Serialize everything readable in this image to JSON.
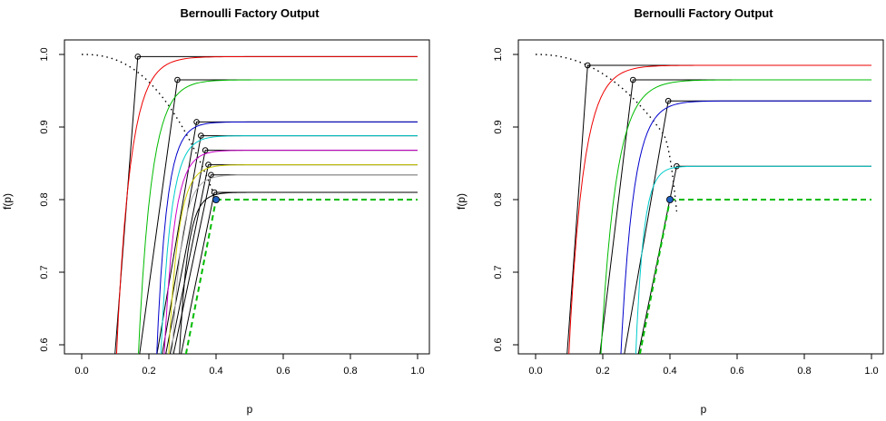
{
  "chart_data": [
    {
      "type": "line",
      "title": "Bernoulli Factory Output",
      "xlabel": "p",
      "ylabel": "f(p)",
      "xlim": [
        0.0,
        1.0
      ],
      "ylim": [
        0.59,
        1.02
      ],
      "xticks": [
        "0.0",
        "0.2",
        "0.4",
        "0.6",
        "0.8",
        "1.0"
      ],
      "yticks": [
        "0.6",
        "0.7",
        "0.8",
        "0.9",
        "1.0"
      ],
      "grid": false,
      "legend": "none",
      "target_function": {
        "style": "dotted",
        "color": "#000000",
        "x_range": [
          0.0,
          0.4
        ]
      },
      "target_point": {
        "x": 0.4,
        "y": 0.8,
        "color": "#1f5fbf"
      },
      "target_line": {
        "y": 0.8,
        "from_x": 0.4,
        "to_x": 1.0,
        "style": "dashed",
        "color": "#00bb00"
      },
      "series": [
        {
          "color": "#000000",
          "steep": true,
          "root": 0.095,
          "knot_x": 0.167,
          "plateau": 0.997
        },
        {
          "color": "#ee0000",
          "steep": false,
          "root": 0.1,
          "knot_x": 0.285,
          "plateau": 0.997
        },
        {
          "color": "#000000",
          "steep": true,
          "root": 0.165,
          "knot_x": 0.285,
          "plateau": 0.965
        },
        {
          "color": "#00bb00",
          "steep": false,
          "root": 0.165,
          "knot_x": 0.342,
          "plateau": 0.965
        },
        {
          "color": "#000000",
          "steep": true,
          "root": 0.215,
          "knot_x": 0.342,
          "plateau": 0.907
        },
        {
          "color": "#0000cc",
          "steep": false,
          "root": 0.22,
          "knot_x": 0.355,
          "plateau": 0.907
        },
        {
          "color": "#000000",
          "steep": true,
          "root": 0.23,
          "knot_x": 0.355,
          "plateau": 0.888
        },
        {
          "color": "#00cccc",
          "steep": false,
          "root": 0.232,
          "knot_x": 0.368,
          "plateau": 0.888
        },
        {
          "color": "#000000",
          "steep": true,
          "root": 0.24,
          "knot_x": 0.368,
          "plateau": 0.868
        },
        {
          "color": "#cc00cc",
          "steep": false,
          "root": 0.242,
          "knot_x": 0.377,
          "plateau": 0.868
        },
        {
          "color": "#000000",
          "steep": true,
          "root": 0.252,
          "knot_x": 0.377,
          "plateau": 0.848
        },
        {
          "color": "#cccc00",
          "steep": false,
          "root": 0.255,
          "knot_x": 0.385,
          "plateau": 0.848
        },
        {
          "color": "#000000",
          "steep": true,
          "root": 0.262,
          "knot_x": 0.385,
          "plateau": 0.834
        },
        {
          "color": "#aaaaaa",
          "steep": false,
          "root": 0.265,
          "knot_x": 0.395,
          "plateau": 0.834
        },
        {
          "color": "#000000",
          "steep": true,
          "root": 0.285,
          "knot_x": 0.395,
          "plateau": 0.81
        },
        {
          "color": "#000000",
          "steep": false,
          "root": 0.287,
          "knot_x": 0.4,
          "plateau": 0.81
        }
      ]
    },
    {
      "type": "line",
      "title": "Bernoulli Factory Output",
      "xlabel": "p",
      "ylabel": "f(p)",
      "xlim": [
        0.0,
        1.0
      ],
      "ylim": [
        0.59,
        1.02
      ],
      "xticks": [
        "0.0",
        "0.2",
        "0.4",
        "0.6",
        "0.8",
        "1.0"
      ],
      "yticks": [
        "0.6",
        "0.7",
        "0.8",
        "0.9",
        "1.0"
      ],
      "grid": false,
      "legend": "none",
      "target_function": {
        "style": "dotted",
        "color": "#000000",
        "x_range": [
          0.0,
          0.42
        ]
      },
      "target_point": {
        "x": 0.4,
        "y": 0.8,
        "color": "#1f5fbf"
      },
      "target_line": {
        "y": 0.8,
        "from_x": 0.4,
        "to_x": 1.0,
        "style": "dashed",
        "color": "#00bb00"
      },
      "series": [
        {
          "color": "#000000",
          "steep": true,
          "root": 0.09,
          "knot_x": 0.155,
          "plateau": 0.985
        },
        {
          "color": "#ee0000",
          "steep": false,
          "root": 0.095,
          "knot_x": 0.29,
          "plateau": 0.985
        },
        {
          "color": "#000000",
          "steep": true,
          "root": 0.185,
          "knot_x": 0.29,
          "plateau": 0.965
        },
        {
          "color": "#00bb00",
          "steep": false,
          "root": 0.19,
          "knot_x": 0.395,
          "plateau": 0.965
        },
        {
          "color": "#000000",
          "steep": true,
          "root": 0.255,
          "knot_x": 0.395,
          "plateau": 0.936
        },
        {
          "color": "#0000cc",
          "steep": false,
          "root": 0.25,
          "knot_x": 0.42,
          "plateau": 0.936
        },
        {
          "color": "#000000",
          "steep": true,
          "root": 0.295,
          "knot_x": 0.42,
          "plateau": 0.846
        },
        {
          "color": "#00cccc",
          "steep": false,
          "root": 0.295,
          "knot_x": 0.4,
          "plateau": 0.846
        }
      ]
    }
  ]
}
